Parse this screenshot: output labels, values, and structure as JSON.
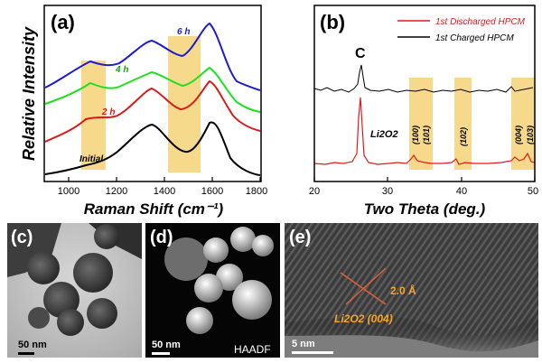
{
  "figure": {
    "panel_a": {
      "label": "(a)",
      "xlabel": "Raman Shift (cm⁻¹)",
      "ylabel": "Relative Intensity",
      "xticks": [
        "1000",
        "1200",
        "1400",
        "1600",
        "1800"
      ],
      "curve_labels": {
        "initial": "Initial",
        "h2": "2 h",
        "h4": "4 h",
        "h6": "6 h"
      }
    },
    "panel_b": {
      "label": "(b)",
      "xlabel": "Two Theta (deg.)",
      "xticks": [
        "20",
        "30",
        "40",
        "50"
      ],
      "legend_discharged": "1st Discharged HPCM",
      "legend_charged": "1st Charged HPCM",
      "peak_c": "C",
      "li2o2": "Li2O2",
      "hkl": [
        "(100)",
        "(101)",
        "(102)",
        "(004)",
        "(103)"
      ]
    },
    "panel_c": {
      "label": "(c)",
      "scale": "50 nm"
    },
    "panel_d": {
      "label": "(d)",
      "scale": "50 nm",
      "mode": "HAADF"
    },
    "panel_e": {
      "label": "(e)",
      "scale": "5 nm",
      "dspacing": "2.0 Å",
      "plane": "Li2O2 (004)"
    }
  },
  "colors": {
    "initial": "#000000",
    "h2": "#d81b1b",
    "h4": "#1ee01e",
    "h6": "#1c1ccf",
    "highlight": "#f7d98b",
    "discharged": "#e11b1b",
    "charged": "#000000",
    "annot": "#f5a623",
    "annot_line": "#e0603a"
  },
  "chart_data": [
    {
      "type": "line",
      "title": "",
      "xlabel": "Raman Shift (cm⁻¹)",
      "ylabel": "Relative Intensity",
      "xlim": [
        900,
        1800
      ],
      "y_scale": "arbitrary units, stacked",
      "highlight_bands": [
        [
          1050,
          1150
        ],
        [
          1410,
          1545
        ]
      ],
      "x": [
        900,
        1000,
        1050,
        1100,
        1150,
        1200,
        1250,
        1300,
        1340,
        1400,
        1450,
        1500,
        1550,
        1590,
        1650,
        1700,
        1800
      ],
      "series": [
        {
          "name": "Initial",
          "values": [
            0.5,
            1,
            1.5,
            2.2,
            3,
            4,
            5.5,
            7.5,
            8.5,
            7,
            5.5,
            5,
            6,
            8.5,
            4.5,
            2,
            1
          ]
        },
        {
          "name": "2 h",
          "values": [
            8,
            9,
            10,
            11,
            11,
            11,
            12.5,
            15,
            16,
            14.5,
            13,
            12.5,
            14,
            15,
            10,
            8,
            7
          ]
        },
        {
          "name": "4 h",
          "values": [
            13,
            14,
            15.5,
            17,
            16.5,
            17,
            18.5,
            19.5,
            20.5,
            20,
            19,
            18.5,
            19.5,
            21,
            17,
            14,
            13
          ]
        },
        {
          "name": "6 h",
          "values": [
            16,
            17,
            19,
            22,
            21,
            21,
            22.5,
            24,
            26,
            25,
            24,
            24,
            26,
            28.5,
            22,
            18,
            16
          ]
        }
      ]
    },
    {
      "type": "line",
      "title": "",
      "xlabel": "Two Theta (deg.)",
      "ylabel": "",
      "xlim": [
        20,
        50
      ],
      "highlight_bands": [
        [
          33,
          36
        ],
        [
          39.5,
          41.5
        ],
        [
          47,
          50
        ]
      ],
      "x": [
        20,
        22,
        24,
        25,
        25.8,
        26.5,
        28,
        30,
        32,
        33.5,
        35,
        37,
        40,
        42,
        45,
        47,
        48.5,
        50
      ],
      "series": [
        {
          "name": "1st Discharged HPCM",
          "values": [
            1,
            1,
            1.2,
            2,
            12,
            2.5,
            1.2,
            1,
            1.1,
            2.5,
            2,
            1,
            2,
            1.1,
            1,
            1.5,
            3,
            1.5
          ]
        },
        {
          "name": "1st Charged HPCM",
          "values": [
            11,
            11,
            11.5,
            12,
            17,
            12,
            11,
            11,
            11,
            11,
            11,
            11,
            11,
            11,
            11,
            11,
            11.5,
            11
          ]
        }
      ]
    }
  ]
}
